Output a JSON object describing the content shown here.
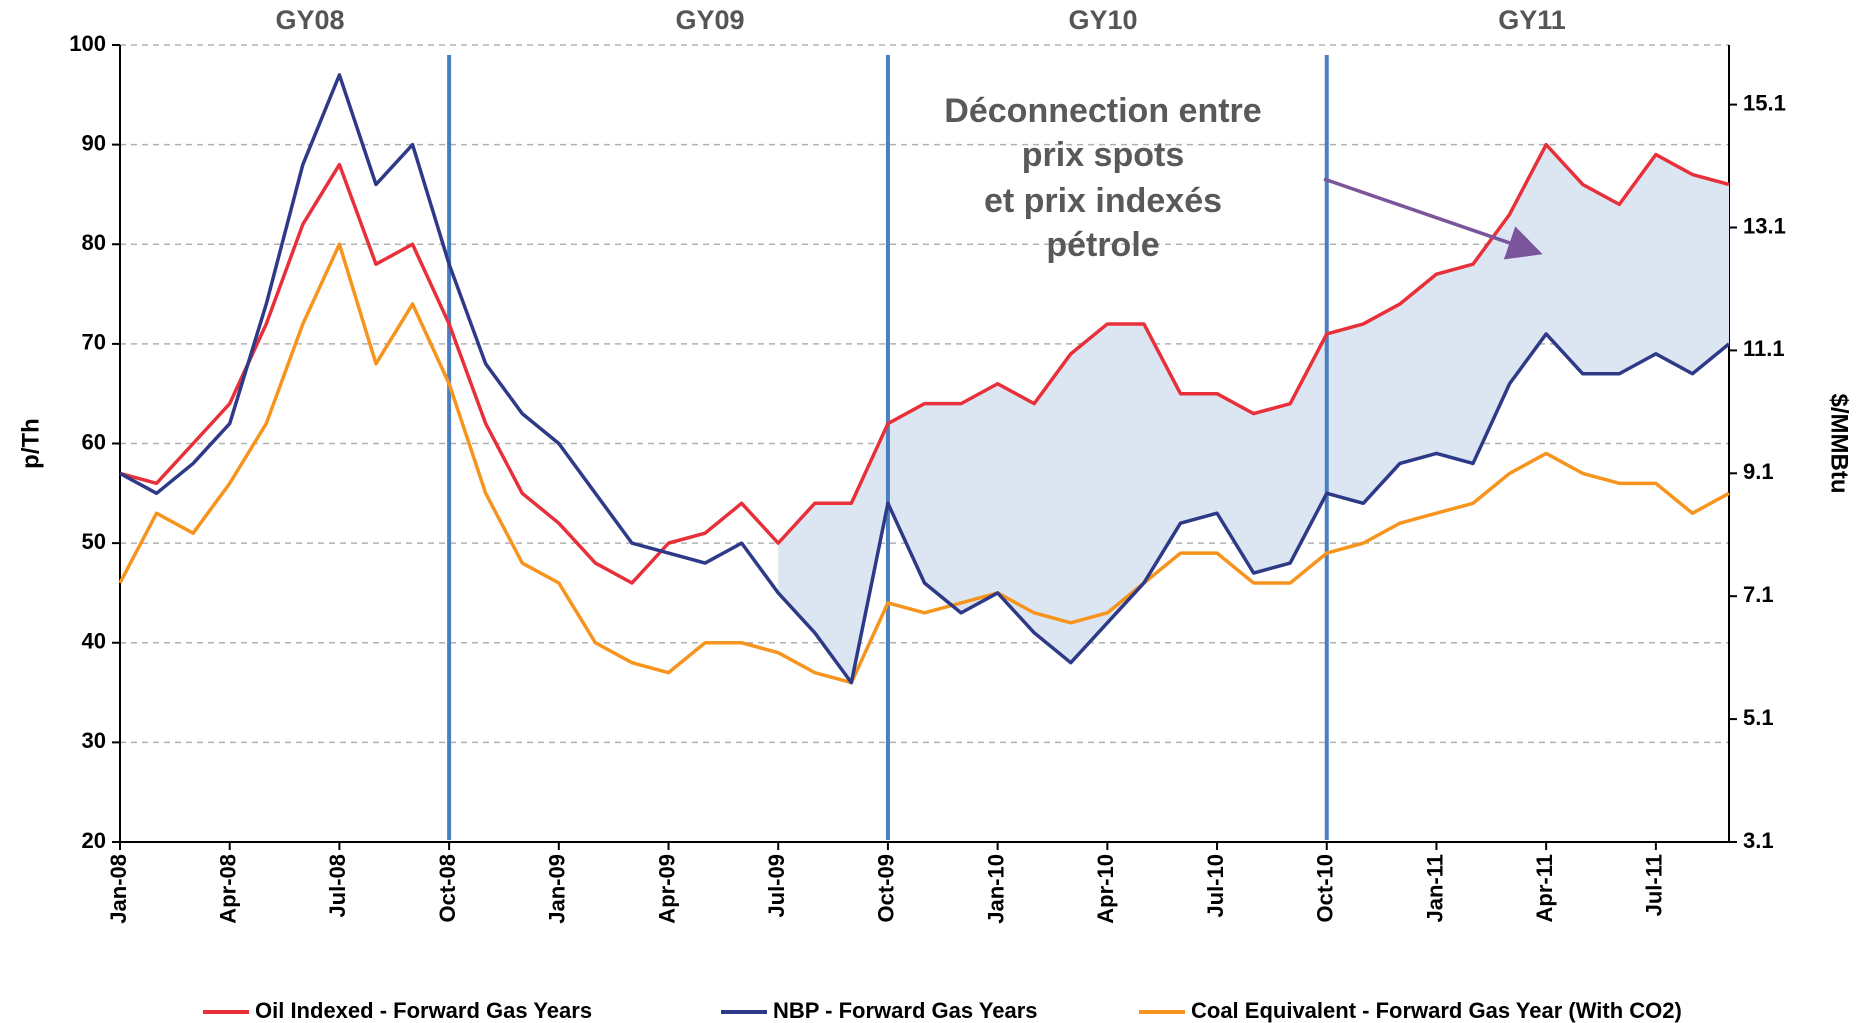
{
  "chart_data": {
    "type": "line",
    "period_labels": [
      "GY08",
      "GY09",
      "GY10",
      "GY11"
    ],
    "annotation": [
      "Déconnection entre",
      "prix spots",
      "et prix indexés",
      "pétrole"
    ],
    "ylabel": "p/Th",
    "y2label": "$/MMBtu",
    "categories": [
      "Jan-08",
      null,
      null,
      "Apr-08",
      null,
      null,
      "Jul-08",
      null,
      null,
      "Oct-08",
      null,
      null,
      "Jan-09",
      null,
      null,
      "Apr-09",
      null,
      null,
      "Jul-09",
      null,
      null,
      "Oct-09",
      null,
      null,
      "Jan-10",
      null,
      null,
      "Apr-10",
      null,
      null,
      "Jul-10",
      null,
      null,
      "Oct-10",
      null,
      null,
      "Jan-11",
      null,
      null,
      "Apr-11",
      null,
      null,
      "Jul-11",
      null,
      null
    ],
    "series": [
      {
        "name": "Oil Indexed - Forward Gas Years",
        "color": "#e8303a",
        "values": [
          57,
          56,
          60,
          64,
          72,
          82,
          88,
          78,
          80,
          72,
          62,
          55,
          52,
          48,
          46,
          50,
          51,
          54,
          50,
          54,
          54,
          62,
          64,
          64,
          66,
          64,
          69,
          72,
          72,
          65,
          65,
          63,
          64,
          71,
          72,
          74,
          77,
          78,
          83,
          90,
          86,
          84,
          89,
          87,
          86
        ]
      },
      {
        "name": "NBP - Forward Gas Years",
        "color": "#2e3a87",
        "values": [
          57,
          55,
          58,
          62,
          74,
          88,
          97,
          86,
          90,
          78,
          68,
          63,
          60,
          55,
          50,
          49,
          48,
          50,
          45,
          41,
          36,
          54,
          46,
          43,
          45,
          41,
          38,
          42,
          46,
          52,
          53,
          47,
          48,
          55,
          54,
          58,
          59,
          58,
          66,
          71,
          67,
          67,
          69,
          67,
          70
        ]
      },
      {
        "name": "Coal Equivalent - Forward Gas Year (With CO2)",
        "color": "#f7941d",
        "values": [
          46,
          53,
          51,
          56,
          62,
          72,
          80,
          68,
          74,
          66,
          55,
          48,
          46,
          40,
          38,
          37,
          40,
          40,
          39,
          37,
          36,
          44,
          43,
          44,
          45,
          43,
          42,
          43,
          46,
          49,
          49,
          46,
          46,
          49,
          50,
          52,
          53,
          54,
          57,
          59,
          57,
          56,
          56,
          53,
          55
        ]
      }
    ],
    "ylim": [
      20,
      100
    ],
    "yticks": [
      20,
      30,
      40,
      50,
      60,
      70,
      80,
      90,
      100
    ],
    "y2lim": [
      3.1,
      16.07
    ],
    "y2ticks": [
      3.1,
      5.1,
      7.1,
      9.1,
      11.1,
      13.1,
      15.1
    ],
    "grid": true,
    "legend": "bottom",
    "fill_between_color": "#dce6f2",
    "period_line_color": "#4a7fc1",
    "annotation_arrow_color": "#7b559c"
  }
}
